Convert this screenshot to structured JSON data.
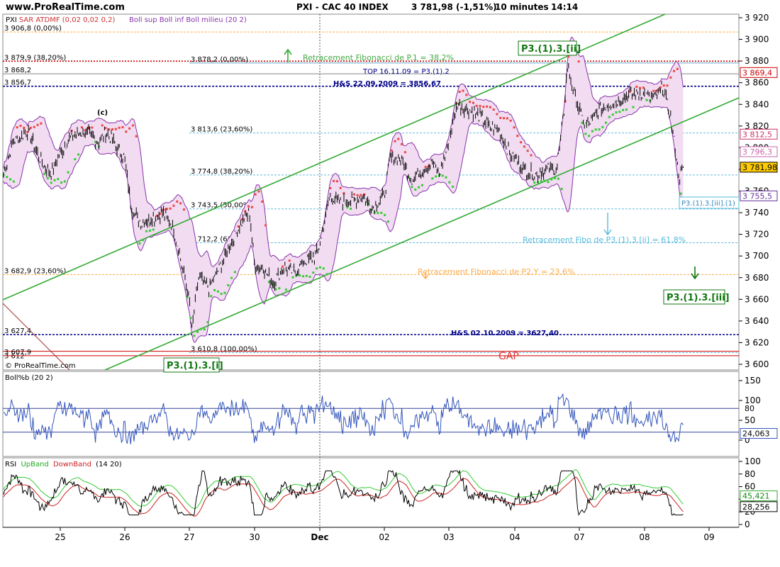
{
  "header": {
    "site": "www.ProRealTime.com",
    "title": "PXI - CAC 40 INDEX",
    "price": "3 781,98 (-1,51%)",
    "interval": "10 minutes",
    "time": "14:14"
  },
  "watermark": "© ProRealTime.com",
  "price_panel": {
    "indicator_line1": "SAR ATDMF (0,02 0,02 0,2)",
    "indicator_line2": "Boll sup Boll inf Boll milieu (20 2)",
    "y_ticks": [
      "3 920",
      "3 900",
      "3 880",
      "3 860",
      "3 840",
      "3 820",
      "3 800",
      "3 780",
      "3 760",
      "3 740",
      "3 720",
      "3 700",
      "3 680",
      "3 660",
      "3 640",
      "3 620",
      "3 600"
    ],
    "price_labels": [
      {
        "text": "3 869,4",
        "value": 3869.4,
        "color": "#cc0000"
      },
      {
        "text": "3 812,5",
        "value": 3812.5,
        "color": "#cc3366"
      },
      {
        "text": "3 796,3",
        "value": 3796.3,
        "color": "#cc66aa"
      },
      {
        "text": "3 781,98",
        "value": 3781.98,
        "color": "#000000"
      },
      {
        "text": "3 755,5",
        "value": 3755.5,
        "color": "#663399"
      }
    ],
    "levels": [
      {
        "label": "3 906,8 (0,00%)",
        "value": 3906.8,
        "color": "#ffaa44"
      },
      {
        "label": "3 879,9 (38,20%)",
        "value": 3879.9,
        "color": "#cc0000"
      },
      {
        "label": "3 878,2 (0,00%)",
        "value": 3878.2,
        "color": "#66aacc"
      },
      {
        "label": "3 868,2",
        "value": 3868.2,
        "color": "#888888"
      },
      {
        "label": "3 856,7",
        "value": 3856.7,
        "color": "#000088"
      },
      {
        "label": "3 813,6 (23,60%)",
        "value": 3813.6,
        "color": "#66bbdd"
      },
      {
        "label": "3 774,8 (38,20%)",
        "value": 3774.8,
        "color": "#66bbdd"
      },
      {
        "label": "3 743,5 (50,00%)",
        "value": 3743.5,
        "color": "#66bbdd"
      },
      {
        "label": "3 712,2 (61,80%)",
        "value": 3712.2,
        "color": "#66bbdd"
      },
      {
        "label": "3 682,9 (23,60%)",
        "value": 3682.9,
        "color": "#ffaa44"
      },
      {
        "label": "3 627,4",
        "value": 3627.4,
        "color": "#000088"
      },
      {
        "label": "3 612",
        "value": 3612,
        "color": "#cc0000"
      },
      {
        "label": "3 610,8 (100,00%)",
        "value": 3610.8,
        "color": "#66bbdd"
      },
      {
        "label": "3 607,9",
        "value": 3607.9,
        "color": "#cc0000"
      }
    ],
    "annotations": [
      {
        "text": "Retracement Fibonacci de P.1 = 38,2%",
        "color": "#44aa44"
      },
      {
        "text": "TOP 16.11.09 = P3.(1).2",
        "color": "#000088"
      },
      {
        "text": "H&S 22.09.2009 = 3856,67",
        "color": "#000088"
      },
      {
        "text": "Retracement Fibo de P3.(1).3.[ii] = 61,8%",
        "color": "#55bbdd"
      },
      {
        "text": "Retracement Fibonacci de P2.Y = 23,6%",
        "color": "#ffaa44"
      },
      {
        "text": "H&S 02.10.2009 = 3627,40",
        "color": "#000088"
      },
      {
        "text": "GAP",
        "color": "#dd3333"
      }
    ],
    "wave_labels": [
      "P3.(1).3.[ii]",
      "P3.(1).3.[iii]",
      "P3.(1).3.[i]",
      "P3.(1).3.[iii].(1)",
      "(c)"
    ]
  },
  "boll_panel": {
    "title": "Boll%b (20 2)",
    "y_ticks": [
      "150",
      "100",
      "50",
      "0"
    ],
    "value_labels": [
      "80",
      "24,063"
    ]
  },
  "rsi_panel": {
    "title_rsi": "RSI",
    "title_up": "UpBand",
    "title_down": "DownBand",
    "title_params": "(14 20)",
    "y_ticks": [
      "100",
      "80",
      "60",
      "40",
      "20",
      "0"
    ],
    "value_labels": [
      "45,421",
      "28,256"
    ]
  },
  "x_axis": {
    "labels": [
      "25",
      "26",
      "27",
      "30",
      "Dec",
      "02",
      "03",
      "04",
      "07",
      "08",
      "09"
    ]
  },
  "chart_data": {
    "type": "line",
    "title": "PXI - CAC 40 INDEX",
    "x": [
      "25",
      "26",
      "27",
      "30",
      "Dec",
      "02",
      "03",
      "04",
      "07",
      "08"
    ],
    "ylim": [
      3600,
      3920
    ],
    "series": [
      {
        "name": "PXI - CAC 40 INDEX",
        "values": [
          3800,
          3815,
          3640,
          3700,
          3690,
          3770,
          3830,
          3780,
          3880,
          3840
        ]
      }
    ],
    "close": 3781.98,
    "grid": true
  }
}
